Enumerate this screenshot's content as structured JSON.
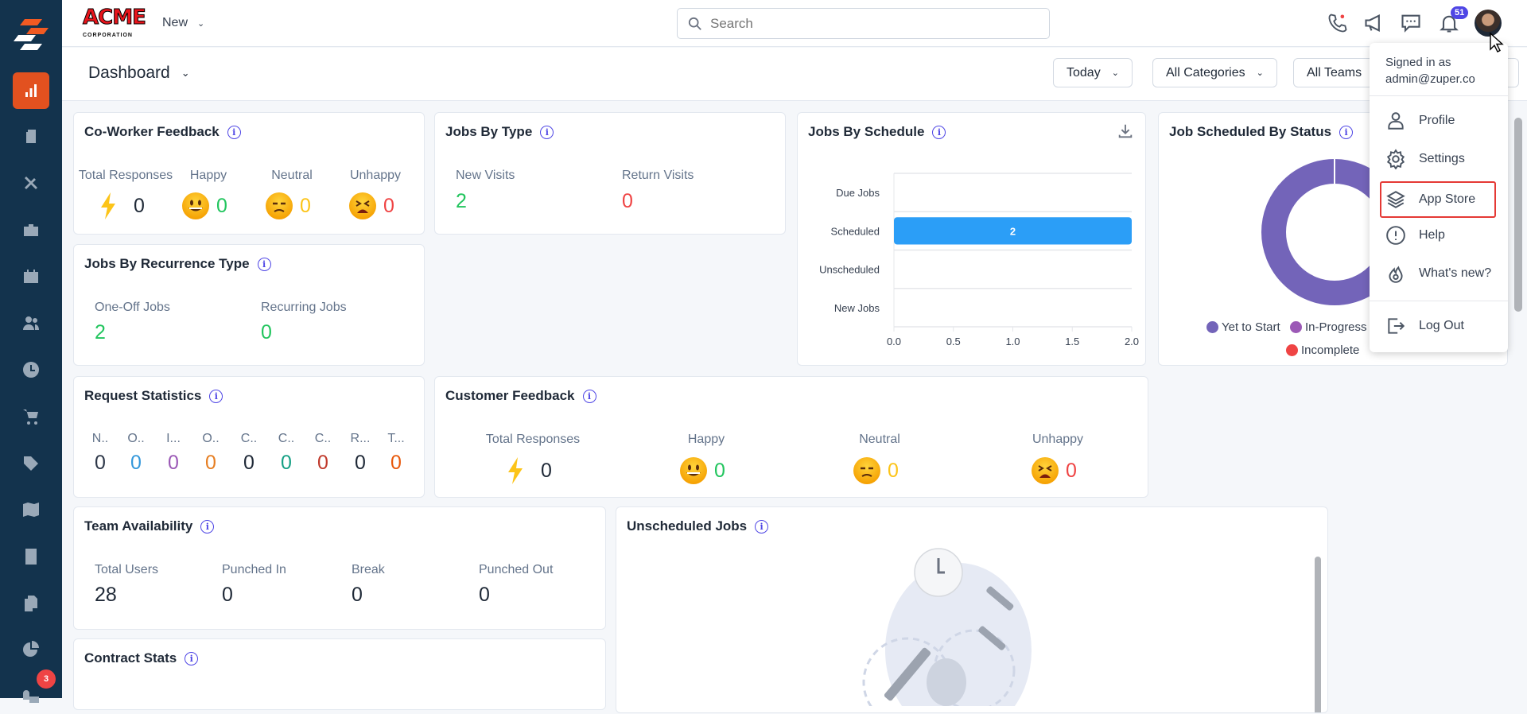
{
  "brand": {
    "logo_text": "ACME",
    "logo_sub": "CORPORATION"
  },
  "topbar": {
    "new_label": "New",
    "search_placeholder": "Search",
    "notification_count": "51"
  },
  "sidebar": {
    "chat_badge": "3",
    "items": [
      "dashboard",
      "jobs",
      "tools",
      "projects",
      "calendar",
      "users",
      "timesheet",
      "cart",
      "tags",
      "map",
      "calculator",
      "documents",
      "reports",
      "chat"
    ]
  },
  "subbar": {
    "title": "Dashboard",
    "filters": [
      "Today",
      "All Categories",
      "All Teams"
    ]
  },
  "user_menu": {
    "signed_in_label": "Signed in as",
    "email": "admin@zuper.co",
    "items": [
      "Profile",
      "Settings",
      "App Store",
      "Help",
      "What's new?",
      "Log Out"
    ]
  },
  "coworker": {
    "title": "Co-Worker Feedback",
    "labels": [
      "Total Responses",
      "Happy",
      "Neutral",
      "Unhappy"
    ],
    "values": [
      "0",
      "0",
      "0",
      "0"
    ]
  },
  "jobs_type": {
    "title": "Jobs By Type",
    "labels": [
      "New Visits",
      "Return Visits"
    ],
    "values": [
      "2",
      "0"
    ]
  },
  "recurrence": {
    "title": "Jobs By Recurrence Type",
    "labels": [
      "One-Off Jobs",
      "Recurring Jobs"
    ],
    "values": [
      "2",
      "0"
    ]
  },
  "request_stats": {
    "title": "Request Statistics",
    "labels": [
      "N..",
      "O..",
      "I...",
      "O..",
      "C..",
      "C..",
      "C..",
      "R...",
      "T..."
    ],
    "values": [
      "0",
      "0",
      "0",
      "0",
      "0",
      "0",
      "0",
      "0",
      "0"
    ],
    "colors": [
      "#2d3748",
      "#3498db",
      "#9b59b6",
      "#e67e22",
      "#1f2937",
      "#16a085",
      "#c0392b",
      "#1f2937",
      "#e8590c"
    ]
  },
  "customer": {
    "title": "Customer Feedback",
    "labels": [
      "Total Responses",
      "Happy",
      "Neutral",
      "Unhappy"
    ],
    "values": [
      "0",
      "0",
      "0",
      "0"
    ]
  },
  "team": {
    "title": "Team Availability",
    "labels": [
      "Total Users",
      "Punched In",
      "Break",
      "Punched Out"
    ],
    "values": [
      "28",
      "0",
      "0",
      "0"
    ]
  },
  "unscheduled": {
    "title": "Unscheduled Jobs"
  },
  "contract": {
    "title": "Contract Stats"
  },
  "status_chart": {
    "title": "Job Scheduled By Status",
    "legend": [
      "Yet to Start",
      "In-Progress",
      "Incomplete"
    ],
    "legend_colors": [
      "#7364b9",
      "#9b59b6",
      "#ef4444"
    ]
  },
  "chart_data": {
    "type": "bar",
    "orientation": "horizontal",
    "title": "Jobs By Schedule",
    "categories": [
      "Due Jobs",
      "Scheduled",
      "Unscheduled",
      "New Jobs"
    ],
    "values": [
      0,
      2,
      0,
      0
    ],
    "xlim": [
      0,
      2
    ],
    "xticks": [
      "0.0",
      "0.5",
      "1.0",
      "1.5",
      "2.0"
    ],
    "bar_color": "#2b9ef7"
  }
}
